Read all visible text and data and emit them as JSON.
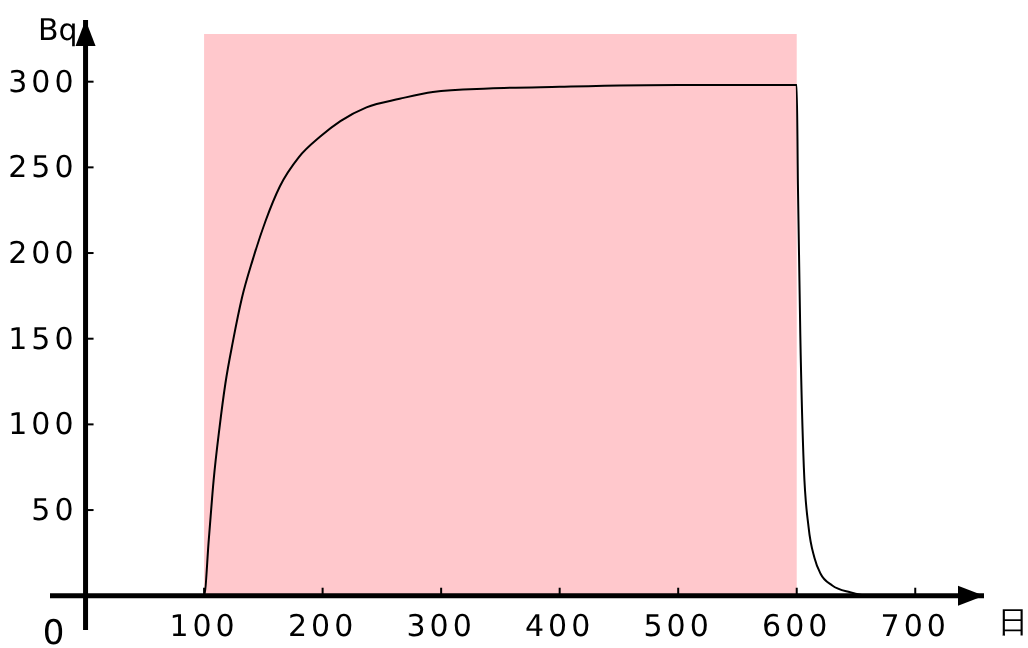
{
  "chart_data": {
    "type": "line",
    "xlabel": "日",
    "ylabel": "Bq",
    "x": [
      0,
      100,
      104,
      108,
      113,
      118,
      124.5,
      132,
      141,
      152,
      164,
      180,
      198,
      215,
      237,
      265,
      293,
      340,
      400,
      500,
      600,
      601,
      603,
      606,
      610,
      615,
      620,
      630,
      645,
      660,
      700
    ],
    "series": [
      {
        "color": "#000000",
        "values": [
          0,
          0,
          33,
          67,
          98,
          124,
          149,
          174,
          196,
          219,
          239,
          256,
          268,
          277,
          285,
          290,
          294,
          296,
          297,
          298,
          298,
          240,
          153,
          75,
          40,
          22,
          13,
          6,
          2,
          0,
          0
        ]
      }
    ],
    "xlim": [
      -30,
      758
    ],
    "ylim": [
      -20,
      336
    ],
    "xticks": [
      100,
      200,
      300,
      400,
      500,
      600,
      700
    ],
    "yticks": [
      50,
      100,
      150,
      200,
      250,
      300
    ],
    "bands": [
      {
        "axis": "x",
        "from": 100,
        "to": 600,
        "color": "#ffc8cc"
      }
    ],
    "annotations": [
      "0"
    ],
    "marker": "none",
    "line_style": "solid",
    "grid": false
  }
}
